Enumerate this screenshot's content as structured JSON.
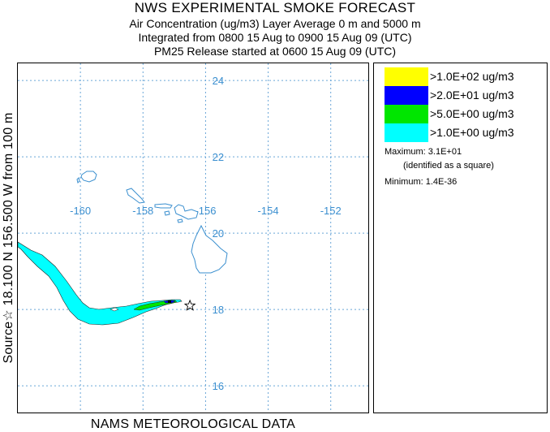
{
  "header": {
    "title": "NWS EXPERIMENTAL SMOKE FORECAST",
    "line2": "Air Concentration (ug/m3) Layer Average    0 m and  5000 m",
    "line3": "Integrated from 0800 15 Aug to 0900 15 Aug 09 (UTC)",
    "line4": "PM25 Release started at 0600 15 Aug 09 (UTC)"
  },
  "side_label": "Source☆ 18.100  N 156.500  W     from   100 m",
  "footer": "NAMS METEOROLOGICAL DATA",
  "map": {
    "lon_range": [
      -162.0,
      -150.8
    ],
    "lat_range": [
      15.3,
      24.45
    ],
    "lon_ticks": [
      -160,
      -158,
      -156,
      -154,
      -152
    ],
    "lat_ticks": [
      24,
      22,
      20,
      18,
      16
    ],
    "lon_tick_labels": [
      "-160",
      "-158",
      "-156",
      "-154",
      "-152"
    ],
    "lat_tick_labels": [
      "24",
      "22",
      "20",
      "18",
      "16"
    ],
    "grid": true,
    "grid_color": "#6aa6d8",
    "label_color": "#3b8fd0",
    "coast_color": "#3a8fcf",
    "source": {
      "lat": 18.1,
      "lon": -156.5,
      "icon": "star-icon"
    }
  },
  "legend": {
    "items": [
      {
        "label": ">1.0E+02 ug/m3",
        "color": "#ffff00"
      },
      {
        "label": ">2.0E+01 ug/m3",
        "color": "#0000ff"
      },
      {
        "label": ">5.0E+00 ug/m3",
        "color": "#00e600"
      },
      {
        "label": ">1.0E+00 ug/m3",
        "color": "#00ffff"
      }
    ],
    "maximum": "Maximum: 3.1E+01",
    "maximum_note": "(identified as a square)",
    "minimum": "Minimum: 1.4E-36"
  }
}
